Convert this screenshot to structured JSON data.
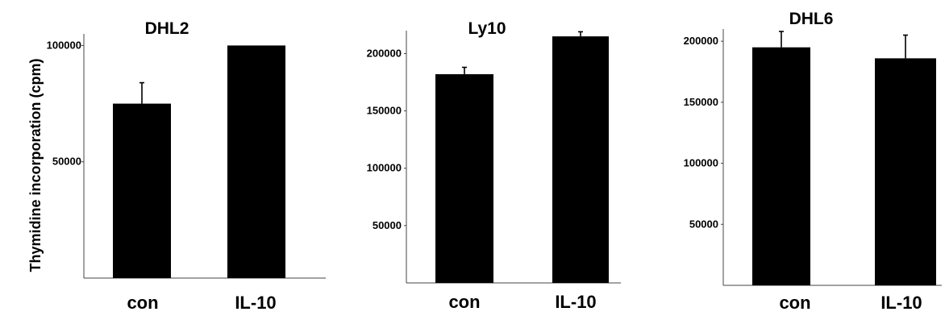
{
  "y_axis_label": "Thymidine incorporation (cpm)",
  "bar_color": "#000000",
  "chart_data": [
    {
      "type": "bar",
      "title": "DHL2",
      "categories": [
        "con",
        "IL-10"
      ],
      "values": [
        75000,
        100000
      ],
      "error": [
        9000,
        0
      ],
      "yticks": [
        50000,
        100000
      ],
      "ylim": [
        0,
        105000
      ]
    },
    {
      "type": "bar",
      "title": "Ly10",
      "categories": [
        "con",
        "IL-10"
      ],
      "values": [
        182000,
        215000
      ],
      "error": [
        6000,
        4000
      ],
      "yticks": [
        50000,
        100000,
        150000,
        200000
      ],
      "ylim": [
        0,
        220000
      ]
    },
    {
      "type": "bar",
      "title": "DHL6",
      "categories": [
        "con",
        "IL-10"
      ],
      "values": [
        195000,
        186000
      ],
      "error": [
        13000,
        19000
      ],
      "yticks": [
        50000,
        100000,
        150000,
        200000
      ],
      "ylim": [
        0,
        210000
      ]
    }
  ]
}
